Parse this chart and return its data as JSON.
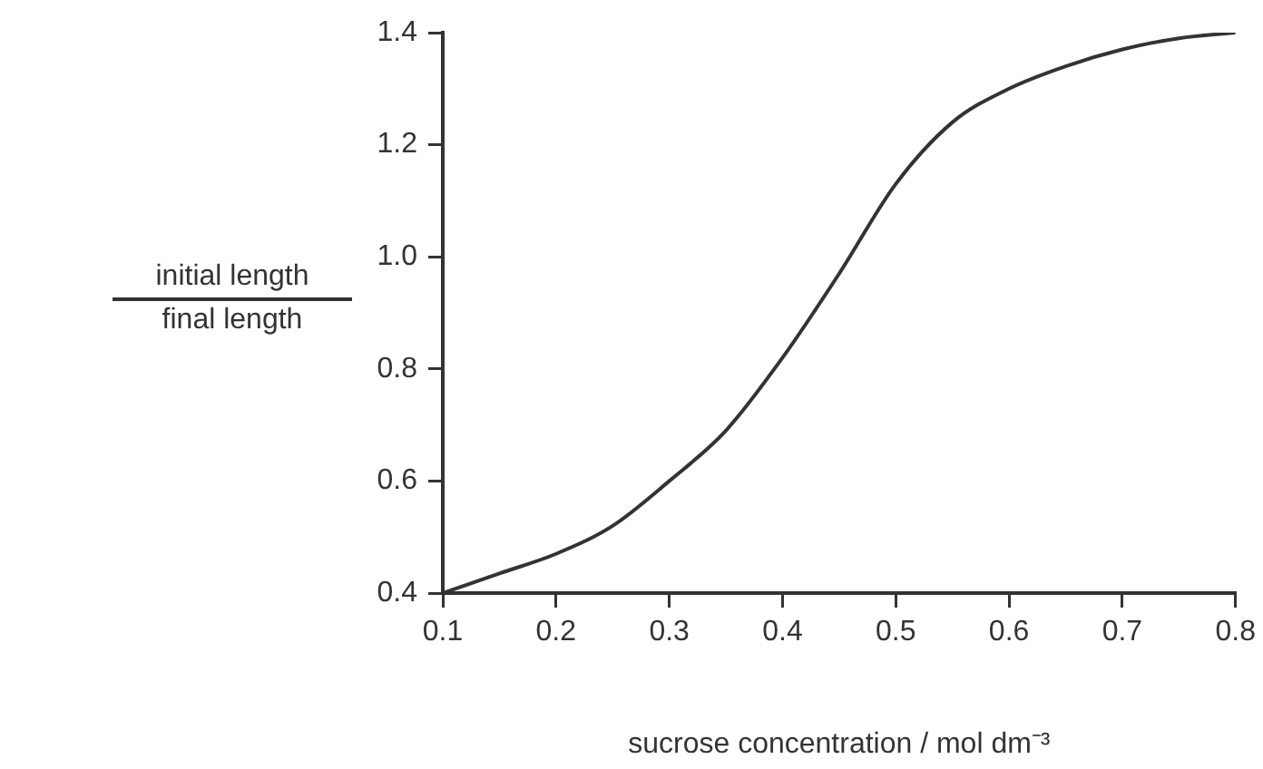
{
  "chart_data": {
    "type": "line",
    "xlabel": "sucrose concentration / mol dm⁻³",
    "ylabel": "initial length\nfinal length",
    "xlim": [
      0.1,
      0.8
    ],
    "xticks": [
      0.1,
      0.2,
      0.3,
      0.4,
      0.5,
      0.6,
      0.7,
      0.8
    ],
    "ylim": [
      0.4,
      1.4
    ],
    "yticks": [
      {
        "value": 0.4,
        "label": "0.4"
      },
      {
        "value": 0.6,
        "label": "0.6"
      },
      {
        "value": 0.8,
        "label": "0.8"
      },
      {
        "value": 1,
        "label": "1.0"
      },
      {
        "value": 1.2,
        "label": "1.2"
      },
      {
        "value": 1.4,
        "label": "1.4"
      }
    ],
    "x": [
      0.1,
      0.15,
      0.2,
      0.25,
      0.3,
      0.35,
      0.4,
      0.45,
      0.5,
      0.55,
      0.6,
      0.65,
      0.7,
      0.75,
      0.8
    ],
    "series": [
      {
        "color": "#333333",
        "values": [
          0.4,
          0.435,
          0.47,
          0.52,
          0.6,
          0.69,
          0.82,
          0.97,
          1.13,
          1.24,
          1.3,
          1.34,
          1.37,
          1.39,
          1.4
        ]
      }
    ],
    "marker": "none",
    "legend": false
  }
}
